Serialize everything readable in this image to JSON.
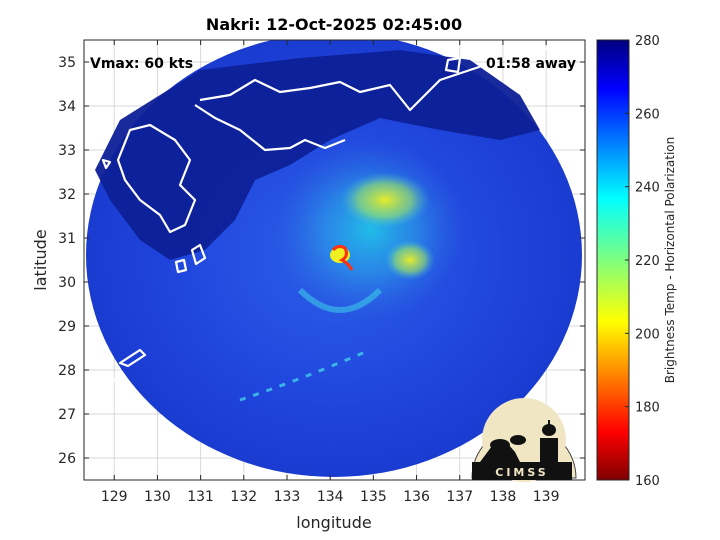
{
  "title": "Nakri: 12-Oct-2025 02:45:00",
  "annotations": {
    "vmax": "Vmax: 60 kts",
    "away": "01:58 away"
  },
  "axes": {
    "xlabel": "longitude",
    "ylabel": "latitude",
    "xlim": [
      128.3,
      139.9
    ],
    "ylim": [
      25.5,
      35.5
    ],
    "xticks": [
      "129",
      "130",
      "131",
      "132",
      "133",
      "134",
      "135",
      "136",
      "137",
      "138",
      "139"
    ],
    "yticks": [
      "26",
      "27",
      "28",
      "29",
      "30",
      "31",
      "32",
      "33",
      "34",
      "35"
    ],
    "grid": true
  },
  "colorbar": {
    "label": "Brightness Temp - Horizontal Polarization",
    "range": [
      160,
      280
    ],
    "ticks": [
      "160",
      "180",
      "200",
      "220",
      "240",
      "260",
      "280"
    ],
    "colormap": "jet"
  },
  "storm": {
    "name": "Nakri",
    "center_lon": 134.1,
    "center_lat": 30.6
  },
  "logo": {
    "text": "CIMSS"
  },
  "colors": {
    "ocean": "#1e3fd6",
    "land": "#0a1b8c",
    "coast": "#ffffff",
    "convection": "#e8e830"
  }
}
